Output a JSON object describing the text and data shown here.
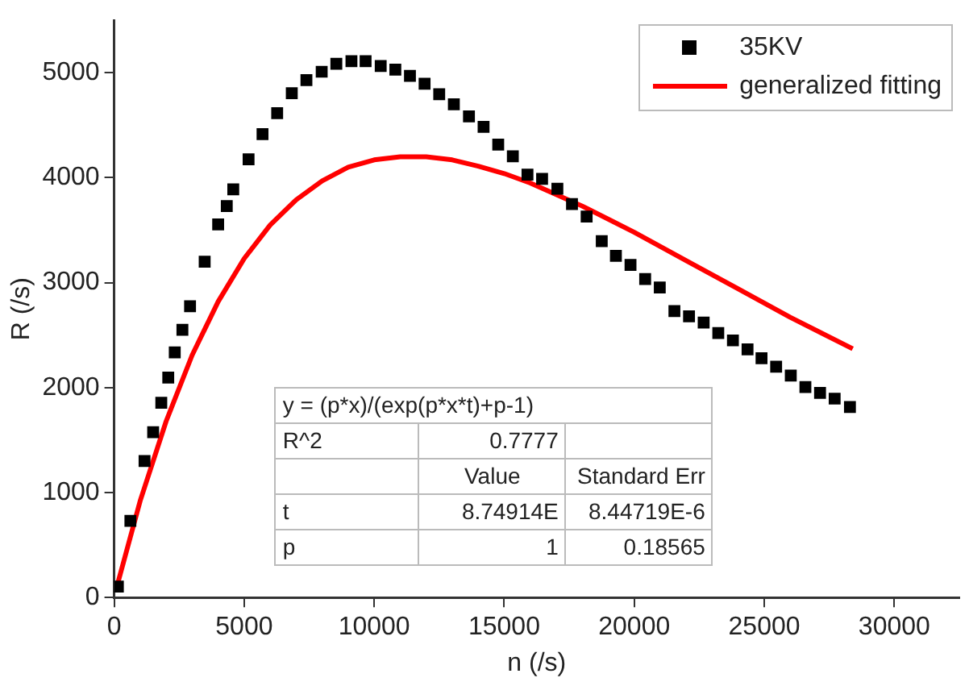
{
  "chart_data": {
    "type": "scatter",
    "xlabel": "n (/s)",
    "ylabel": "R (/s)",
    "xlim": [
      0,
      32500
    ],
    "xticks": [
      0,
      5000,
      10000,
      15000,
      20000,
      25000,
      30000
    ],
    "ylim": [
      0,
      5500
    ],
    "yticks": [
      0,
      1000,
      2000,
      3000,
      4000,
      5000
    ],
    "grid": false,
    "legend": "top right",
    "marker": "square",
    "series": [
      {
        "name": "35KV",
        "type": "scatter",
        "color": "#000000",
        "x": [
          144,
          625,
          1169,
          1500,
          1813,
          2081,
          2331,
          2625,
          2919,
          3481,
          4000,
          4331,
          4581,
          5169,
          5706,
          6269,
          6831,
          7394,
          7981,
          8544,
          9125,
          9669,
          10250,
          10813,
          11375,
          11938,
          12500,
          13063,
          13644,
          14206,
          14769,
          15331,
          15894,
          16456,
          17044,
          17606,
          18169,
          18750,
          19294,
          19856,
          20419,
          20981,
          21544,
          22106,
          22669,
          23231,
          23794,
          24356,
          24894,
          25456,
          26019,
          26581,
          27144,
          27706,
          28294
        ],
        "values": [
          105,
          730,
          1300,
          1575,
          1855,
          2095,
          2335,
          2550,
          2775,
          3200,
          3555,
          3730,
          3890,
          4175,
          4415,
          4615,
          4805,
          4930,
          5010,
          5085,
          5110,
          5110,
          5065,
          5030,
          4970,
          4895,
          4795,
          4700,
          4585,
          4485,
          4315,
          4205,
          4030,
          3990,
          3895,
          3750,
          3630,
          3395,
          3255,
          3170,
          3035,
          2955,
          2730,
          2680,
          2620,
          2520,
          2450,
          2365,
          2280,
          2200,
          2115,
          2005,
          1950,
          1895,
          1815
        ]
      },
      {
        "name": "generalized fitting",
        "type": "line",
        "color": "#ff0000",
        "marker": "none",
        "line_style": "solid",
        "x": [
          100,
          1000,
          2000,
          3000,
          4000,
          5000,
          6000,
          7000,
          8000,
          9000,
          10000,
          11000,
          12000,
          13000,
          14000,
          15000,
          16000,
          18000,
          20000,
          22000,
          24000,
          26000,
          28400
        ],
        "values": [
          100,
          920,
          1680,
          2310,
          2820,
          3230,
          3550,
          3790,
          3970,
          4100,
          4170,
          4200,
          4200,
          4170,
          4110,
          4040,
          3950,
          3730,
          3480,
          3210,
          2940,
          2670,
          2370
        ]
      }
    ],
    "annotations": [
      "y = (p*x)/(exp(p*x*t)+p-1)",
      "R^2",
      "0.7777",
      "Value",
      "Standard Err",
      "t",
      "8.74914E",
      "8.44719E-6",
      "p",
      "1",
      "0.18565"
    ]
  }
}
